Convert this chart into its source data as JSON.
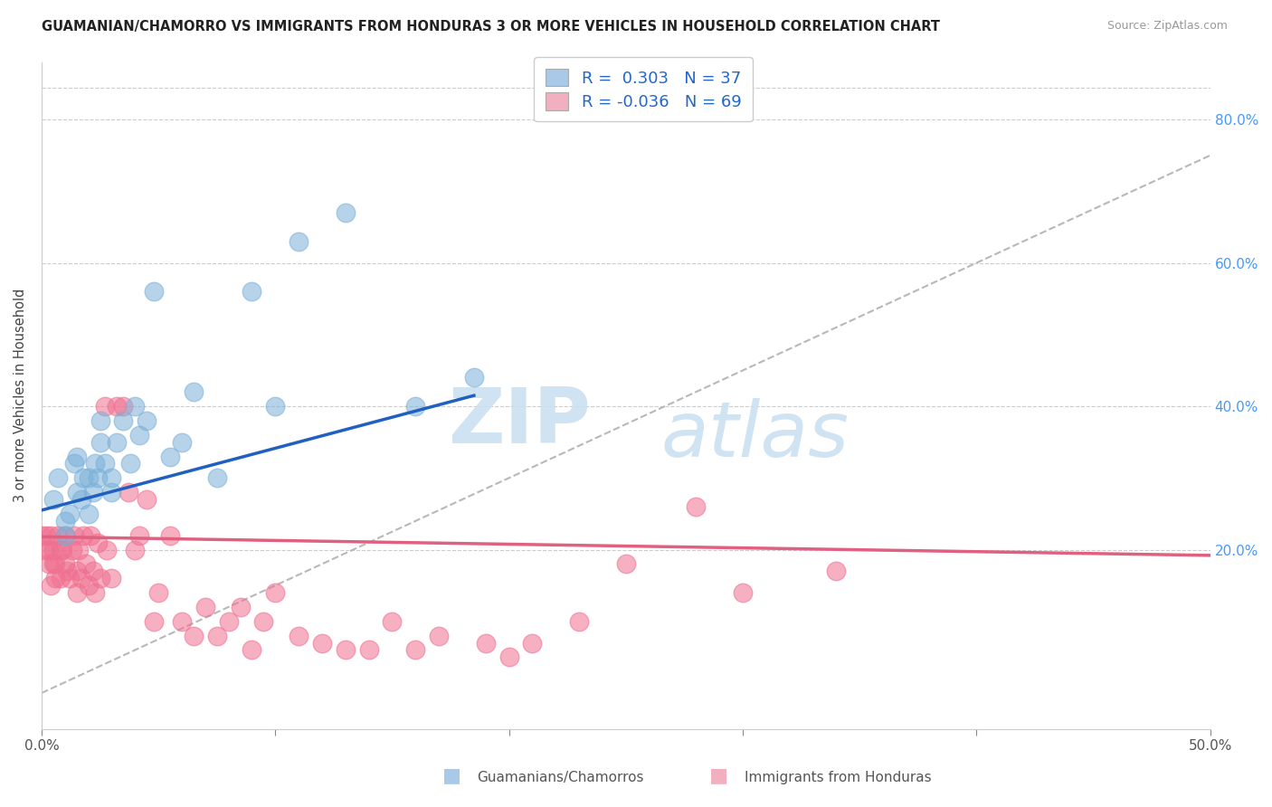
{
  "title": "GUAMANIAN/CHAMORRO VS IMMIGRANTS FROM HONDURAS 3 OR MORE VEHICLES IN HOUSEHOLD CORRELATION CHART",
  "source": "Source: ZipAtlas.com",
  "ylabel": "3 or more Vehicles in Household",
  "xmin": 0.0,
  "xmax": 0.5,
  "ymin": -0.05,
  "ymax": 0.88,
  "legend1_label": "R =  0.303   N = 37",
  "legend2_label": "R = -0.036   N = 69",
  "legend1_color": "#aac8e8",
  "legend2_color": "#f0b0c0",
  "dot_color_blue": "#7ab0d8",
  "dot_color_pink": "#f07090",
  "line_color_blue": "#2060c0",
  "line_color_pink": "#e06080",
  "line_color_dashed": "#b8b8b8",
  "watermark_zip": "ZIP",
  "watermark_atlas": "atlas",
  "bottom_label1": "Guamanians/Chamorros",
  "bottom_label2": "Immigrants from Honduras",
  "guamanian_x": [
    0.005,
    0.007,
    0.01,
    0.01,
    0.012,
    0.014,
    0.015,
    0.015,
    0.017,
    0.018,
    0.02,
    0.02,
    0.022,
    0.023,
    0.024,
    0.025,
    0.025,
    0.027,
    0.03,
    0.03,
    0.032,
    0.035,
    0.038,
    0.04,
    0.042,
    0.045,
    0.048,
    0.055,
    0.06,
    0.065,
    0.075,
    0.09,
    0.1,
    0.11,
    0.13,
    0.16,
    0.185
  ],
  "guamanian_y": [
    0.27,
    0.3,
    0.22,
    0.24,
    0.25,
    0.32,
    0.28,
    0.33,
    0.27,
    0.3,
    0.25,
    0.3,
    0.28,
    0.32,
    0.3,
    0.35,
    0.38,
    0.32,
    0.28,
    0.3,
    0.35,
    0.38,
    0.32,
    0.4,
    0.36,
    0.38,
    0.56,
    0.33,
    0.35,
    0.42,
    0.3,
    0.56,
    0.4,
    0.63,
    0.67,
    0.4,
    0.44
  ],
  "honduras_x": [
    0.0,
    0.001,
    0.002,
    0.003,
    0.003,
    0.004,
    0.004,
    0.005,
    0.005,
    0.006,
    0.006,
    0.007,
    0.008,
    0.008,
    0.009,
    0.01,
    0.01,
    0.011,
    0.012,
    0.013,
    0.014,
    0.015,
    0.015,
    0.016,
    0.017,
    0.018,
    0.019,
    0.02,
    0.021,
    0.022,
    0.023,
    0.024,
    0.025,
    0.027,
    0.028,
    0.03,
    0.032,
    0.035,
    0.037,
    0.04,
    0.042,
    0.045,
    0.048,
    0.05,
    0.055,
    0.06,
    0.065,
    0.07,
    0.075,
    0.08,
    0.085,
    0.09,
    0.095,
    0.1,
    0.11,
    0.12,
    0.13,
    0.14,
    0.15,
    0.16,
    0.17,
    0.19,
    0.2,
    0.21,
    0.23,
    0.25,
    0.28,
    0.3,
    0.34
  ],
  "honduras_y": [
    0.22,
    0.2,
    0.22,
    0.2,
    0.18,
    0.22,
    0.15,
    0.18,
    0.2,
    0.18,
    0.16,
    0.22,
    0.2,
    0.16,
    0.2,
    0.22,
    0.18,
    0.17,
    0.16,
    0.2,
    0.22,
    0.17,
    0.14,
    0.2,
    0.16,
    0.22,
    0.18,
    0.15,
    0.22,
    0.17,
    0.14,
    0.21,
    0.16,
    0.4,
    0.2,
    0.16,
    0.4,
    0.4,
    0.28,
    0.2,
    0.22,
    0.27,
    0.1,
    0.14,
    0.22,
    0.1,
    0.08,
    0.12,
    0.08,
    0.1,
    0.12,
    0.06,
    0.1,
    0.14,
    0.08,
    0.07,
    0.06,
    0.06,
    0.1,
    0.06,
    0.08,
    0.07,
    0.05,
    0.07,
    0.1,
    0.18,
    0.26,
    0.14,
    0.17
  ],
  "blue_line_x0": 0.0,
  "blue_line_y0": 0.255,
  "blue_line_x1": 0.185,
  "blue_line_y1": 0.415,
  "pink_line_x0": 0.0,
  "pink_line_y0": 0.218,
  "pink_line_x1": 0.5,
  "pink_line_y1": 0.192,
  "dash_line_x0": 0.0,
  "dash_line_y0": 0.0,
  "dash_line_x1": 0.5,
  "dash_line_y1": 0.75
}
